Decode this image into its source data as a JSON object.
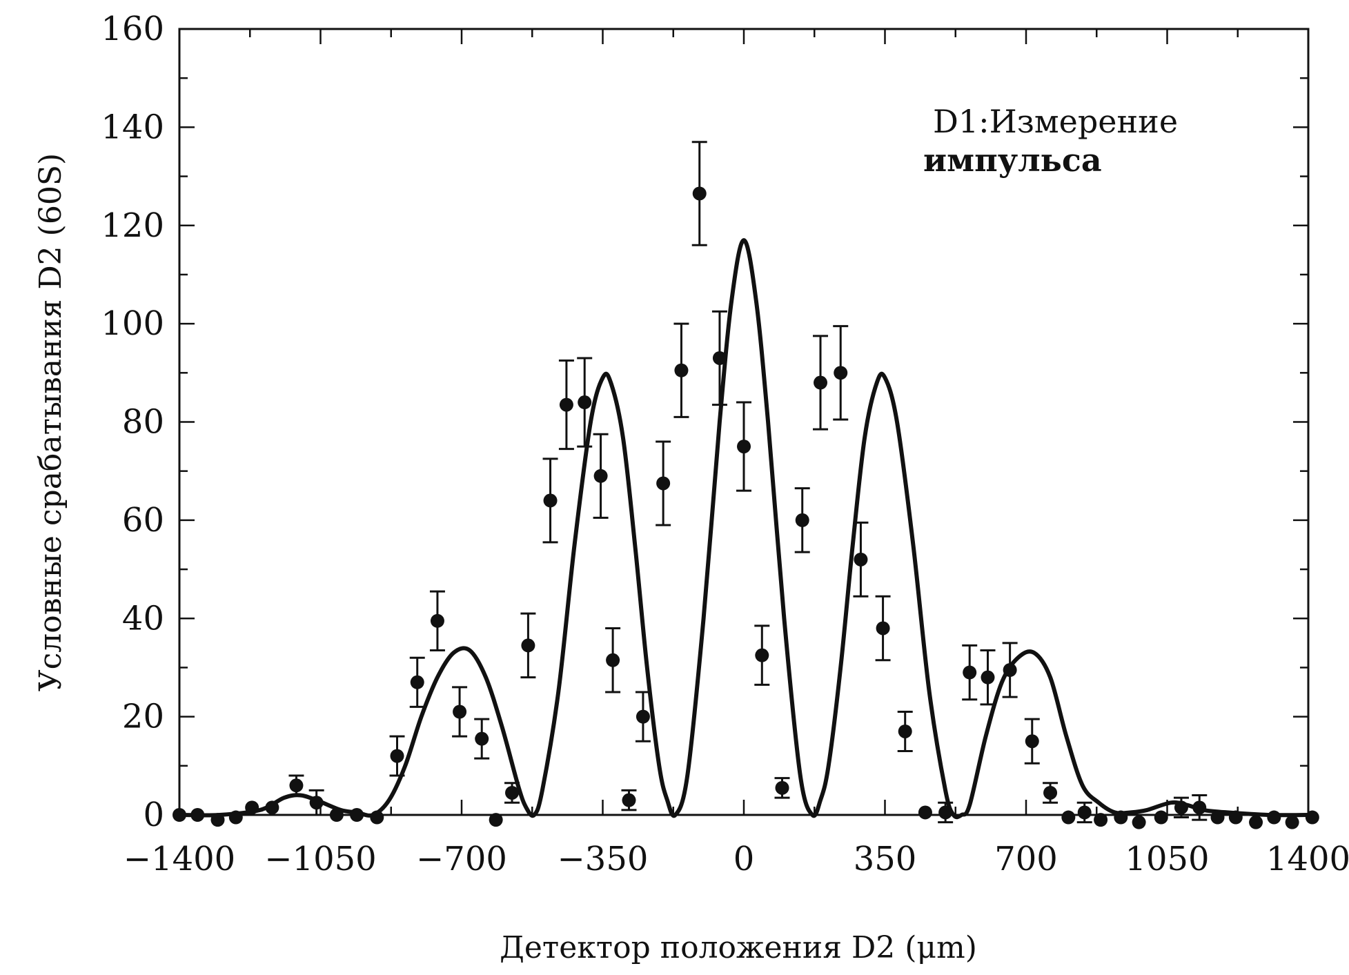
{
  "chart_data": {
    "type": "scatter",
    "title": "",
    "xlabel": "Детектор положения D2 (μm)",
    "ylabel": "Условные срабатывания D2 (60S)",
    "annotation": [
      "D1:Измерение",
      "импульса"
    ],
    "xlim": [
      -1400,
      1400
    ],
    "ylim": [
      0,
      160
    ],
    "xticks": [
      -1400,
      -1050,
      -700,
      -350,
      0,
      350,
      700,
      1050,
      1400
    ],
    "xtick_labels": [
      "−1400",
      "−1050",
      "−700",
      "−350",
      "0",
      "350",
      "700",
      "1050",
      "1400"
    ],
    "yticks": [
      0,
      20,
      40,
      60,
      80,
      100,
      120,
      140,
      160
    ],
    "ytick_labels": [
      "0",
      "20",
      "40",
      "60",
      "80",
      "100",
      "120",
      "140",
      "160"
    ],
    "grid": false,
    "series": [
      {
        "kind": "measured",
        "x": [
          -1400,
          -1355,
          -1305,
          -1260,
          -1220,
          -1170,
          -1110,
          -1060,
          -1010,
          -960,
          -910,
          -860,
          -810,
          -760,
          -705,
          -650,
          -615,
          -575,
          -535,
          -480,
          -440,
          -395,
          -355,
          -325,
          -285,
          -250,
          -200,
          -155,
          -110,
          -60,
          0,
          45,
          95,
          145,
          190,
          240,
          290,
          345,
          400,
          450,
          500,
          560,
          605,
          660,
          715,
          760,
          805,
          845,
          885,
          935,
          980,
          1035,
          1085,
          1130,
          1175,
          1220,
          1270,
          1315,
          1360,
          1410
        ],
        "y": [
          0,
          0,
          -1,
          -0.5,
          1.5,
          1.5,
          6,
          2.5,
          0,
          0,
          -0.5,
          12,
          27,
          39.5,
          21,
          15.5,
          -1,
          4.5,
          34.5,
          64,
          83.5,
          84,
          69,
          31.5,
          3,
          20,
          67.5,
          90.5,
          126.5,
          93,
          75,
          32.5,
          5.5,
          60,
          88,
          90,
          52,
          38,
          17,
          0.5,
          0.5,
          29,
          28,
          29.5,
          15,
          4.5,
          -0.5,
          0.5,
          -1,
          -0.5,
          -1.5,
          -0.5,
          1.5,
          1.5,
          -0.5,
          -0.5,
          -1.5,
          -0.5,
          -1.5,
          -0.5
        ],
        "errors": [
          0,
          0,
          0,
          0,
          0,
          0,
          2,
          2.5,
          0,
          0,
          0,
          4,
          5,
          6,
          5,
          4,
          0,
          2,
          6.5,
          8.5,
          9,
          9,
          8.5,
          6.5,
          2,
          5,
          8.5,
          9.5,
          10.5,
          9.5,
          9,
          6,
          2,
          6.5,
          9.5,
          9.5,
          7.5,
          6.5,
          4,
          0,
          2,
          5.5,
          5.5,
          5.5,
          4.5,
          2,
          0,
          2,
          0,
          0,
          0,
          0,
          2,
          2.5,
          0,
          0,
          0,
          0,
          0,
          0
        ]
      },
      {
        "kind": "fit",
        "x": [
          -1400,
          -1300,
          -1200,
          -1140,
          -1100,
          -1060,
          -1000,
          -960,
          -920,
          -880,
          -840,
          -800,
          -760,
          -720,
          -680,
          -640,
          -600,
          -560,
          -540,
          -520,
          -500,
          -460,
          -420,
          -380,
          -350,
          -330,
          -300,
          -270,
          -240,
          -210,
          -190,
          -170,
          -140,
          -100,
          -60,
          -30,
          0,
          30,
          60,
          100,
          140,
          170,
          190,
          210,
          240,
          270,
          300,
          330,
          350,
          380,
          420,
          460,
          500,
          520,
          540,
          560,
          600,
          640,
          680,
          720,
          760,
          800,
          840,
          880,
          920,
          960,
          1000,
          1060,
          1100,
          1140,
          1200,
          1300,
          1400
        ],
        "y": [
          0,
          0,
          1,
          3.5,
          4,
          3,
          1,
          0.5,
          0,
          3,
          10,
          20,
          28,
          33,
          33.5,
          28,
          18,
          6,
          1.5,
          0,
          5,
          25,
          55,
          80,
          89,
          88,
          77,
          55,
          30,
          10,
          3,
          0,
          8,
          40,
          80,
          105,
          117,
          105,
          80,
          40,
          8,
          0,
          3,
          10,
          30,
          55,
          77,
          88,
          89,
          80,
          55,
          25,
          5,
          0,
          0,
          2,
          16,
          27,
          32,
          33,
          28,
          16,
          6,
          2.5,
          0.5,
          0.5,
          1,
          2.5,
          2,
          1,
          0.5,
          0,
          0
        ]
      }
    ]
  }
}
